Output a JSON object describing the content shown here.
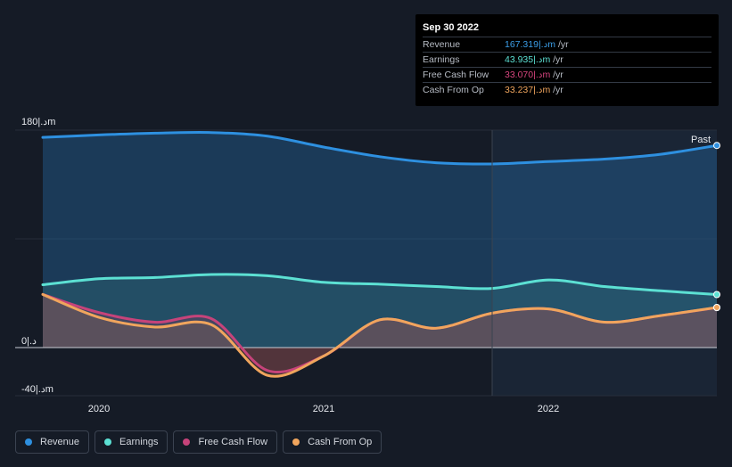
{
  "tooltip": {
    "date": "Sep 30 2022",
    "rows": [
      {
        "label": "Revenue",
        "value": "167.319|.دm",
        "unit": "/yr",
        "color": "#3b9ee8"
      },
      {
        "label": "Earnings",
        "value": "43.935|.دm",
        "unit": "/yr",
        "color": "#5ce0d3"
      },
      {
        "label": "Free Cash Flow",
        "value": "33.070|.دm",
        "unit": "/yr",
        "color": "#d6457e"
      },
      {
        "label": "Cash From Op",
        "value": "33.237|.دm",
        "unit": "/yr",
        "color": "#f0a55d"
      }
    ]
  },
  "legend": [
    {
      "label": "Revenue",
      "color": "#2e90e0"
    },
    {
      "label": "Earnings",
      "color": "#5ce0d3"
    },
    {
      "label": "Free Cash Flow",
      "color": "#c6437a"
    },
    {
      "label": "Cash From Op",
      "color": "#f0a55d"
    }
  ],
  "past_label": "Past",
  "chart_data": {
    "type": "line",
    "y_tick_labels": [
      "180|.دm",
      "0|.د",
      "-40|.دm"
    ],
    "y_ticks": [
      180,
      0,
      -40
    ],
    "ylim": [
      -40,
      180
    ],
    "x_tick_labels": [
      "2020",
      "2021",
      "2022"
    ],
    "x_ticks": [
      2020.0,
      2021.0,
      2022.0
    ],
    "xlim": [
      2019.75,
      2022.75
    ],
    "past_from": 2021.75,
    "series": [
      {
        "name": "Revenue",
        "color": "#2e90e0",
        "x": [
          2019.75,
          2020.0,
          2020.25,
          2020.5,
          2020.75,
          2021.0,
          2021.25,
          2021.5,
          2021.75,
          2022.0,
          2022.25,
          2022.5,
          2022.75
        ],
        "values": [
          174,
          176,
          177.5,
          178,
          175,
          166,
          158,
          153,
          152,
          154,
          156,
          160,
          167.3
        ]
      },
      {
        "name": "Earnings",
        "color": "#5ce0d3",
        "x": [
          2019.75,
          2020.0,
          2020.25,
          2020.5,
          2020.75,
          2021.0,
          2021.25,
          2021.5,
          2021.75,
          2022.0,
          2022.25,
          2022.5,
          2022.75
        ],
        "values": [
          52,
          57,
          58,
          60.5,
          59.5,
          54,
          52.5,
          50.5,
          49,
          56,
          50.5,
          47,
          43.9
        ]
      },
      {
        "name": "Free Cash Flow",
        "color": "#c6437a",
        "x": [
          2019.75,
          2020.0,
          2020.25,
          2020.5,
          2020.75,
          2021.0,
          2021.25,
          2021.5,
          2021.75,
          2022.0,
          2022.25,
          2022.5,
          2022.75
        ],
        "values": [
          44,
          29,
          21,
          24,
          -19,
          -7,
          23,
          16,
          28.5,
          32,
          21,
          26.5,
          33.1
        ]
      },
      {
        "name": "Cash From Op",
        "color": "#f0a55d",
        "x": [
          2019.75,
          2020.0,
          2020.25,
          2020.5,
          2020.75,
          2021.0,
          2021.25,
          2021.5,
          2021.75,
          2022.0,
          2022.25,
          2022.5,
          2022.75
        ],
        "values": [
          44,
          25,
          17,
          19,
          -23,
          -7,
          23,
          16,
          28.5,
          32,
          21,
          26.5,
          33.2
        ]
      }
    ]
  }
}
